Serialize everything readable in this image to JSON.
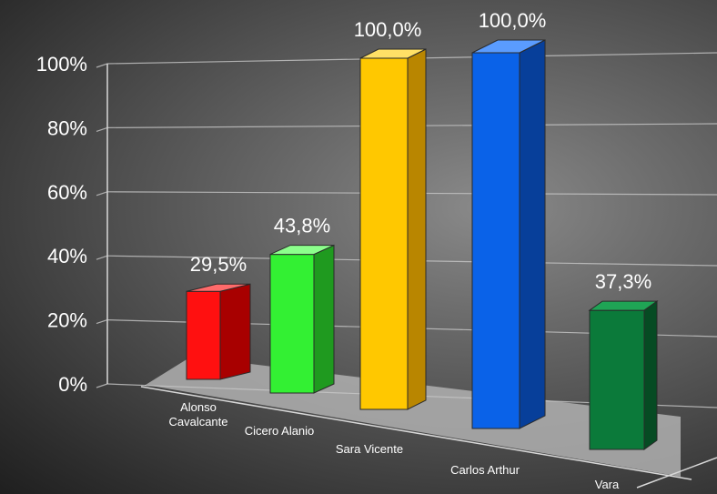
{
  "chart_data": {
    "type": "bar",
    "title": "",
    "xlabel": "",
    "ylabel": "",
    "ylim": [
      0,
      100
    ],
    "grid": true,
    "legend": "none",
    "yticks": [
      "0%",
      "20%",
      "40%",
      "60%",
      "80%",
      "100%"
    ],
    "categories": [
      {
        "lines": [
          "Alonso",
          "Cavalcante"
        ]
      },
      {
        "lines": [
          "Cicero Alanio"
        ]
      },
      {
        "lines": [
          "Sara Vicente"
        ]
      },
      {
        "lines": [
          "Carlos Arthur"
        ]
      },
      {
        "lines": [
          "Vara"
        ]
      }
    ],
    "values": [
      29.5,
      43.8,
      100.0,
      100.0,
      37.3
    ],
    "value_labels": [
      "29,5%",
      "43,8%",
      "100,0%",
      "100,0%",
      "37,3%"
    ],
    "colors": [
      {
        "front": "#ff1010",
        "side": "#a80000",
        "top": "#ff6a6a"
      },
      {
        "front": "#33f033",
        "side": "#1f9a1f",
        "top": "#8cff8c"
      },
      {
        "front": "#ffc800",
        "side": "#b98600",
        "top": "#ffe066"
      },
      {
        "front": "#0a62e8",
        "side": "#073f9a",
        "top": "#5a9cff"
      },
      {
        "front": "#0b7a3a",
        "side": "#064b23",
        "top": "#1fa455"
      }
    ]
  }
}
